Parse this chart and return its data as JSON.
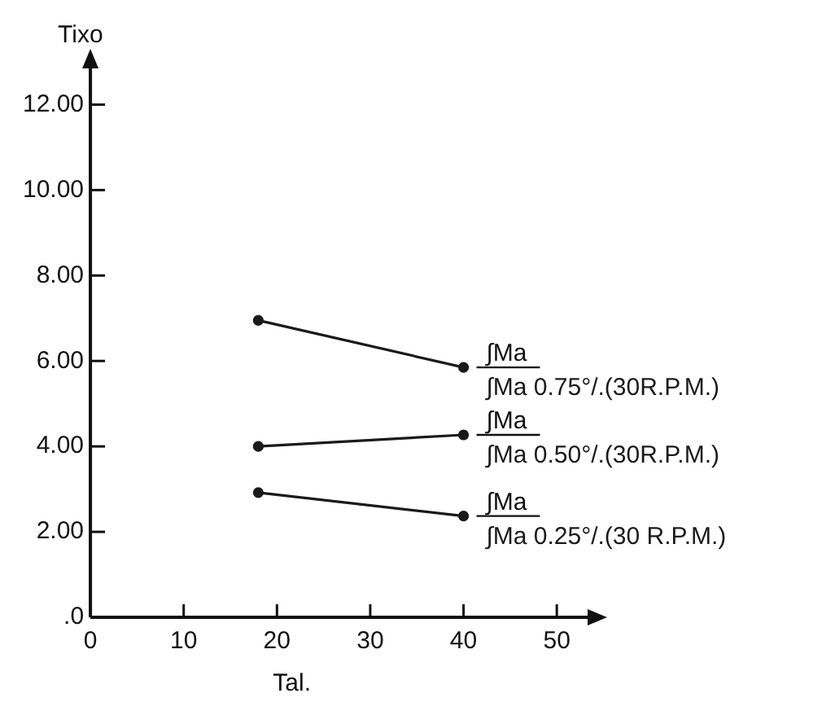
{
  "chart_data": {
    "type": "line",
    "xlabel": "Tal.",
    "ylabel": "Tixo",
    "x": [
      18,
      40
    ],
    "series": [
      {
        "name": "∫Ma 0.75°/.(30R.P.M.)",
        "color": "#1a1a1a",
        "values": [
          6.95,
          5.85
        ]
      },
      {
        "name": "∫Ma 0.50°/.(30R.P.M.)",
        "color": "#1a1a1a",
        "values": [
          4.0,
          4.27
        ]
      },
      {
        "name": "∫Ma 0.25°/.(30 R.P.M.)",
        "color": "#1a1a1a",
        "values": [
          2.92,
          2.37
        ]
      }
    ],
    "annotations": [
      "∫Ma",
      "∫Ma",
      "∫Ma"
    ],
    "xlim": [
      0,
      54
    ],
    "xticks": [
      0,
      10,
      20,
      30,
      40,
      50
    ],
    "ylim": [
      0,
      13
    ],
    "yticks": [
      {
        "value": 0,
        "label": ".0"
      },
      {
        "value": 2,
        "label": "2.00"
      },
      {
        "value": 4,
        "label": "4.00"
      },
      {
        "value": 6,
        "label": "6.00"
      },
      {
        "value": 8,
        "label": "8.00"
      },
      {
        "value": 10,
        "label": "10.00"
      },
      {
        "value": 12,
        "label": "12.00"
      }
    ],
    "grid": false,
    "legend": "right",
    "marker": "circle",
    "line_style": "solid"
  }
}
